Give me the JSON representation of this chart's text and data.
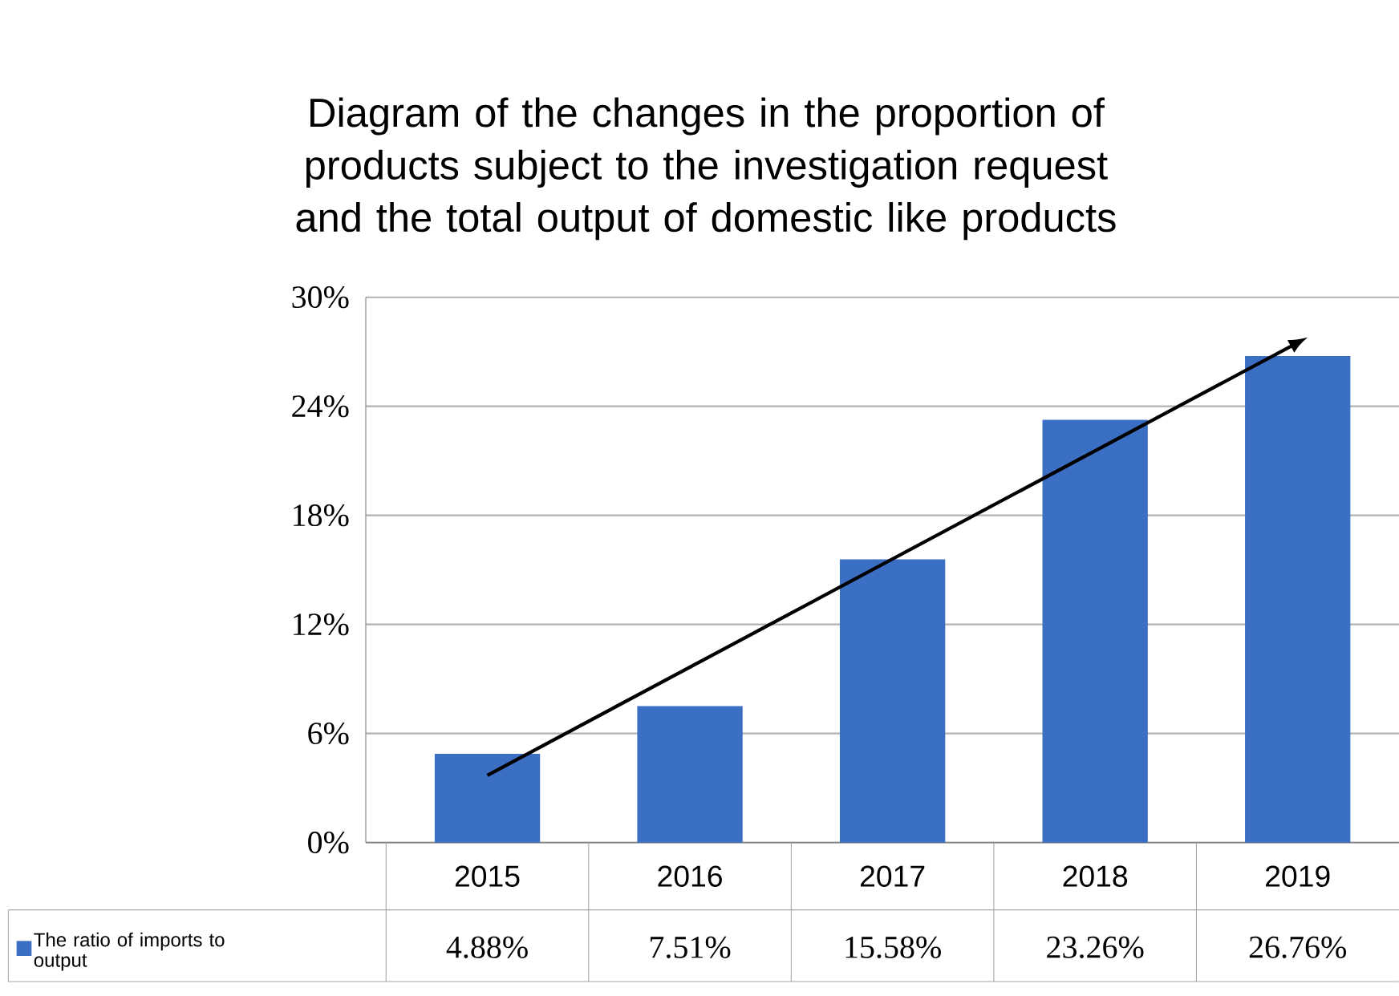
{
  "chart_data": {
    "type": "bar",
    "title": "Diagram of the changes in the proportion of products subject to the investigation request and the total output of domestic like products",
    "categories": [
      "2015",
      "2016",
      "2017",
      "2018",
      "2019"
    ],
    "series": [
      {
        "name": "The ratio of imports to output",
        "color": "#3a6fc4",
        "values": [
          4.88,
          7.51,
          15.58,
          23.26,
          26.76
        ],
        "value_labels": [
          "4.88%",
          "7.51%",
          "15.58%",
          "23.26%",
          "26.76%"
        ]
      }
    ],
    "ylim": [
      0,
      30
    ],
    "yticks": [
      {
        "value": 0,
        "label": "0%"
      },
      {
        "value": 6,
        "label": "6%"
      },
      {
        "value": 12,
        "label": "12%"
      },
      {
        "value": 18,
        "label": "18%"
      },
      {
        "value": 24,
        "label": "24%"
      },
      {
        "value": 30,
        "label": "30%"
      }
    ],
    "grid": "y",
    "legend": "bottom left"
  }
}
